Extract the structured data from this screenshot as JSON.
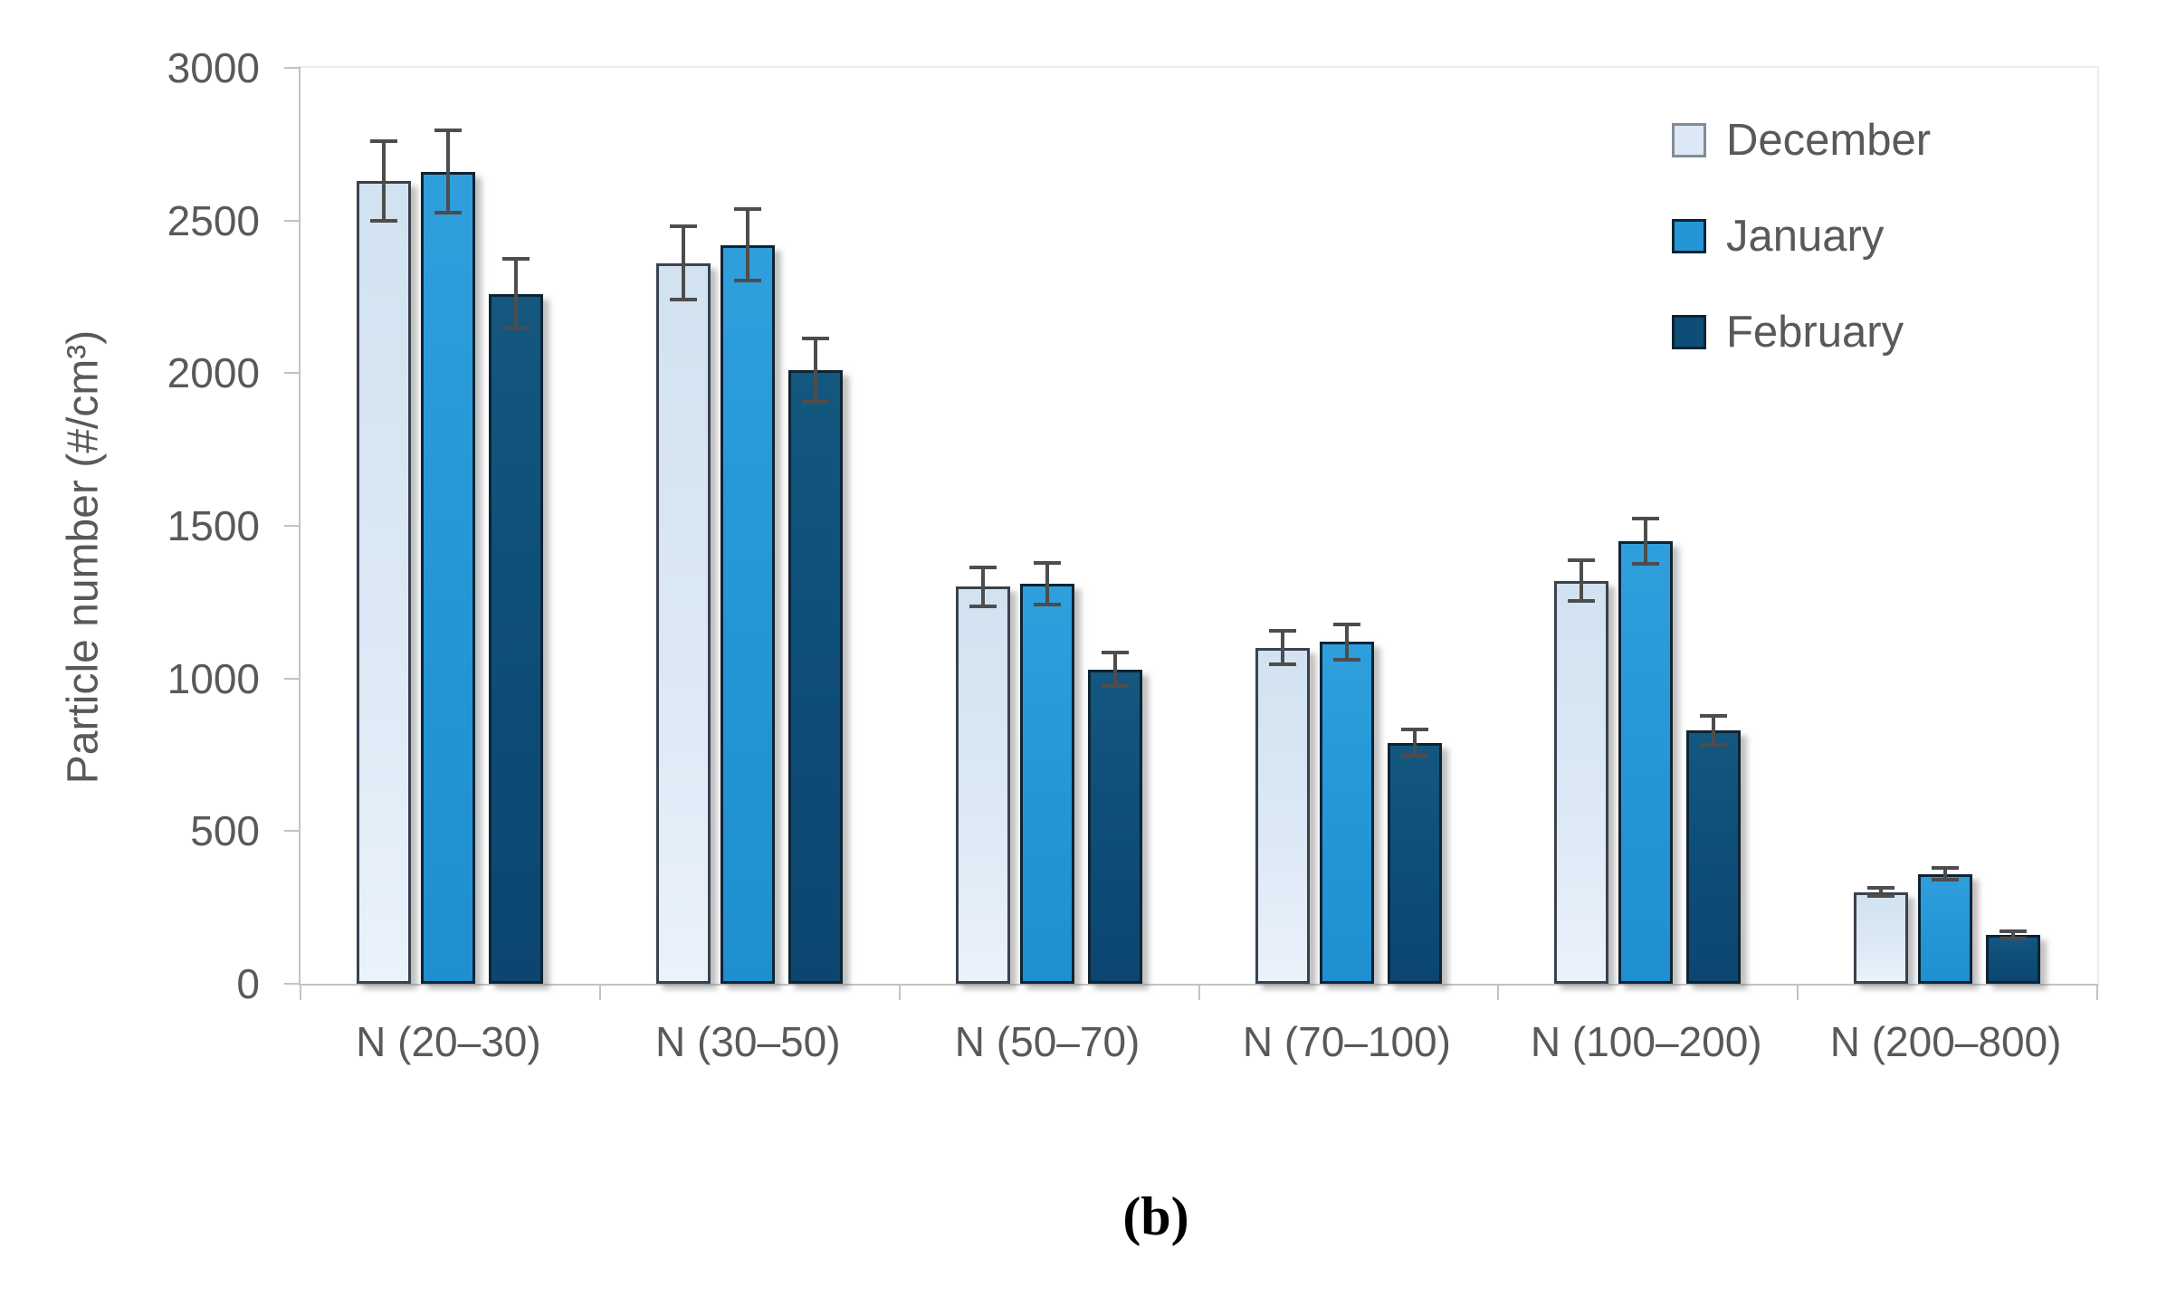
{
  "figure": {
    "caption": "(b)"
  },
  "chart_data": {
    "type": "bar",
    "title": "",
    "xlabel": "",
    "ylabel": "Particle number (#/cm³)",
    "ylim": [
      0,
      3000
    ],
    "yticks": [
      0,
      500,
      1000,
      1500,
      2000,
      2500,
      3000
    ],
    "grid": false,
    "legend_position": "top-right",
    "error_bars": true,
    "categories": [
      "N (20–30)",
      "N (30–50)",
      "N (50–70)",
      "N (70–100)",
      "N (100–200)",
      "N (200–800)"
    ],
    "series": [
      {
        "name": "December",
        "values": [
          2630,
          2360,
          1300,
          1100,
          1320,
          300
        ],
        "errors": [
          130,
          120,
          65,
          55,
          67,
          13
        ],
        "fill": "#dce8f5",
        "fill_gradient": [
          "#d2e2f0",
          "#eaf2fb"
        ],
        "border": "#39424e",
        "swatch_border": "#828c96"
      },
      {
        "name": "January",
        "values": [
          2660,
          2420,
          1310,
          1120,
          1450,
          360
        ],
        "errors": [
          135,
          118,
          67,
          58,
          75,
          18
        ],
        "fill": "#2496d6",
        "fill_gradient": [
          "#2f9fdc",
          "#1f8fd0"
        ],
        "border": "#0e2433",
        "swatch_border": "#0e2433"
      },
      {
        "name": "February",
        "values": [
          2260,
          2010,
          1030,
          790,
          830,
          160
        ],
        "errors": [
          115,
          103,
          56,
          43,
          46,
          11
        ],
        "fill": "#0d4d78",
        "fill_gradient": [
          "#14577f",
          "#0c4670"
        ],
        "border": "#0e2433",
        "swatch_border": "#0e2433"
      }
    ],
    "colors": {
      "axis_line": "#c3c3c3",
      "plot_border": "#ededed",
      "tick_text": "#595959",
      "error_bar": "#4d4d4d",
      "caption_text": "#000000"
    }
  }
}
